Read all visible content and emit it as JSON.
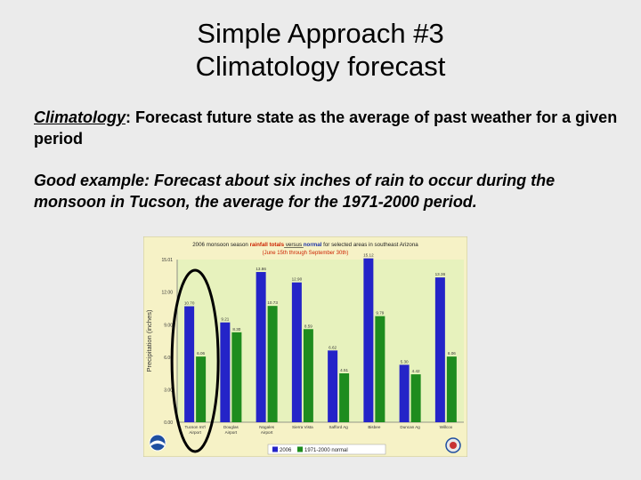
{
  "slide": {
    "title_line1": "Simple Approach #3",
    "title_line2": "Climatology forecast",
    "definition_term": "Climatology",
    "definition_rest": ": Forecast future state as the average of past weather for a given period",
    "example": "Good example: Forecast about six inches of rain to occur during the monsoon in Tucson, the average for the 1971-2000 period."
  },
  "chart_data": {
    "type": "bar",
    "title_parts": [
      "2006 monsoon season ",
      "rainfall totals",
      " versus ",
      "normal",
      " for selected areas in southeast Arizona"
    ],
    "subtitle": "(June 15th through September 30th)",
    "ylabel": "Precipitation (inches)",
    "ylim": [
      0,
      15.01
    ],
    "yticks": [
      "0.00",
      "3.00",
      "6.00",
      "9.00",
      "12.00",
      "15.01"
    ],
    "categories": [
      "Tucson Int'l Airport",
      "Douglas Airport",
      "Nogales Airport",
      "Sierra Vista",
      "Safford Ag",
      "Bisbee",
      "Duncan Ag",
      "Willcox"
    ],
    "series": [
      {
        "name": "2006",
        "color": "#2424c8",
        "values": [
          10.7,
          9.21,
          13.86,
          12.9,
          6.62,
          15.12,
          5.3,
          13.36
        ],
        "labels": [
          "10.70",
          "9.21",
          "13.86",
          "12.90",
          "6.62",
          "15.12",
          "5.30",
          "13.36"
        ]
      },
      {
        "name": "1971-2000 normal",
        "color": "#1e8c1e",
        "values": [
          6.06,
          8.3,
          10.73,
          8.59,
          4.51,
          9.79,
          4.42,
          6.06
        ],
        "labels": [
          "6.06",
          "8.30",
          "10.73",
          "8.59",
          "4.51",
          "9.79",
          "4.42",
          "6.06"
        ]
      }
    ],
    "legend_position": "bottom",
    "grid": false,
    "colors": {
      "panel": "#f6f2c6",
      "plot": "#e7f2bd",
      "title_red": "#cc2200",
      "title_blue": "#1d33a8",
      "ellipse": "#000000"
    }
  }
}
